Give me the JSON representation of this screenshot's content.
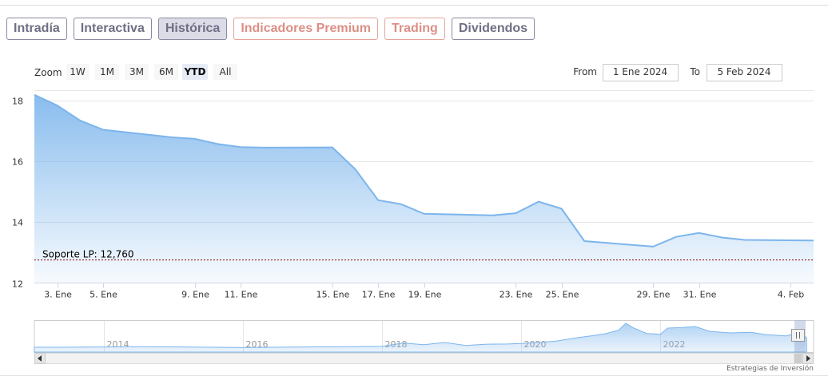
{
  "tabs": [
    {
      "label": "Intradía",
      "style": "normal"
    },
    {
      "label": "Interactiva",
      "style": "normal"
    },
    {
      "label": "Histórica",
      "style": "active"
    },
    {
      "label": "Indicadores Premium",
      "style": "premium"
    },
    {
      "label": "Trading",
      "style": "premium"
    },
    {
      "label": "Dividendos",
      "style": "normal"
    }
  ],
  "zoom": {
    "label": "Zoom",
    "buttons": [
      "1W",
      "1M",
      "3M",
      "6M",
      "YTD",
      "All"
    ],
    "selected": "YTD"
  },
  "range": {
    "from_label": "From",
    "from_value": "1 Ene 2024",
    "to_label": "To",
    "to_value": "5 Feb 2024"
  },
  "credit": "Estrategias de Inversión",
  "colors": {
    "line": "#7cb5ec",
    "support": "#8b0000",
    "tab_border": "#8a8aa0",
    "premium": "#dc8f86"
  },
  "chart_data": {
    "type": "area",
    "x_start": "2024-01-02",
    "x": [
      "2024-01-02",
      "2024-01-03",
      "2024-01-04",
      "2024-01-05",
      "2024-01-08",
      "2024-01-09",
      "2024-01-10",
      "2024-01-11",
      "2024-01-12",
      "2024-01-15",
      "2024-01-16",
      "2024-01-17",
      "2024-01-18",
      "2024-01-19",
      "2024-01-22",
      "2024-01-23",
      "2024-01-24",
      "2024-01-25",
      "2024-01-26",
      "2024-01-29",
      "2024-01-30",
      "2024-01-31",
      "2024-02-01",
      "2024-02-02",
      "2024-02-05"
    ],
    "values": [
      18.2,
      17.85,
      17.35,
      17.05,
      16.8,
      16.75,
      16.58,
      16.48,
      16.46,
      16.47,
      15.75,
      14.73,
      14.6,
      14.28,
      14.23,
      14.3,
      14.68,
      14.45,
      13.38,
      13.2,
      13.52,
      13.65,
      13.5,
      13.42,
      13.4
    ],
    "ylim": [
      12,
      18.3
    ],
    "yticks": [
      12,
      14,
      16,
      18
    ],
    "xtick_labels": [
      {
        "date": "2024-01-03",
        "label": "3. Ene"
      },
      {
        "date": "2024-01-05",
        "label": "5. Ene"
      },
      {
        "date": "2024-01-09",
        "label": "9. Ene"
      },
      {
        "date": "2024-01-11",
        "label": "11. Ene"
      },
      {
        "date": "2024-01-15",
        "label": "15. Ene"
      },
      {
        "date": "2024-01-17",
        "label": "17. Ene"
      },
      {
        "date": "2024-01-19",
        "label": "19. Ene"
      },
      {
        "date": "2024-01-23",
        "label": "23. Ene"
      },
      {
        "date": "2024-01-25",
        "label": "25. Ene"
      },
      {
        "date": "2024-01-29",
        "label": "29. Ene"
      },
      {
        "date": "2024-01-31",
        "label": "31. Ene"
      },
      {
        "date": "2024-02-04",
        "label": "4. Feb"
      }
    ],
    "support_line": {
      "value": 12.76,
      "label": "Soporte LP: 12,760"
    },
    "navigator": {
      "year_labels": [
        "2014",
        "2016",
        "2018",
        "2020",
        "2022"
      ],
      "year_range": [
        2013.0,
        2024.2
      ],
      "series": [
        [
          2013.0,
          4.5
        ],
        [
          2013.5,
          4.6
        ],
        [
          2014.0,
          4.8
        ],
        [
          2014.5,
          5.0
        ],
        [
          2015.0,
          4.9
        ],
        [
          2015.5,
          4.6
        ],
        [
          2016.0,
          4.2
        ],
        [
          2016.5,
          4.6
        ],
        [
          2017.0,
          4.9
        ],
        [
          2017.5,
          5.1
        ],
        [
          2018.0,
          5.4
        ],
        [
          2018.3,
          8.5
        ],
        [
          2018.6,
          7.0
        ],
        [
          2018.9,
          9.0
        ],
        [
          2019.2,
          6.2
        ],
        [
          2019.5,
          7.4
        ],
        [
          2019.8,
          7.6
        ],
        [
          2020.0,
          8.0
        ],
        [
          2020.3,
          9.4
        ],
        [
          2020.5,
          10.3
        ],
        [
          2020.8,
          13.5
        ],
        [
          2021.0,
          15.2
        ],
        [
          2021.2,
          17.2
        ],
        [
          2021.4,
          20.6
        ],
        [
          2021.5,
          27.0
        ],
        [
          2021.6,
          23.0
        ],
        [
          2021.8,
          17.5
        ],
        [
          2022.0,
          16.8
        ],
        [
          2022.1,
          22.5
        ],
        [
          2022.3,
          23.0
        ],
        [
          2022.5,
          24.0
        ],
        [
          2022.7,
          19.5
        ],
        [
          2023.0,
          18.0
        ],
        [
          2023.3,
          18.5
        ],
        [
          2023.5,
          16.5
        ],
        [
          2023.8,
          15.2
        ],
        [
          2024.0,
          18.2
        ],
        [
          2024.1,
          13.4
        ]
      ]
    }
  }
}
